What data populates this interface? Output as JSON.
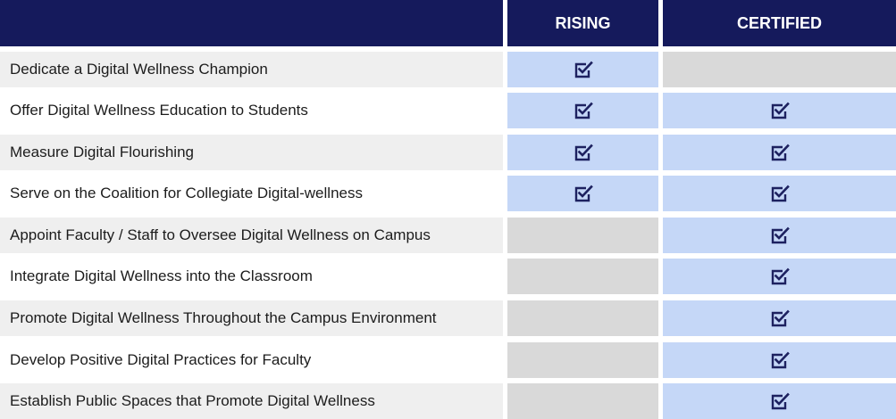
{
  "header": {
    "rising": "RISING",
    "certified": "CERTIFIED"
  },
  "colors": {
    "header": "#151a5c",
    "checked": "#c5d7f7",
    "unchecked": "#d9d9d9",
    "check_icon": "#1d2160"
  },
  "icons": {
    "check": "checkbox-checked-icon"
  },
  "rows": [
    {
      "label": "Dedicate a Digital Wellness Champion",
      "rising": true,
      "certified": false
    },
    {
      "label": "Offer Digital Wellness Education to Students",
      "rising": true,
      "certified": true
    },
    {
      "label": "Measure Digital Flourishing",
      "rising": true,
      "certified": true
    },
    {
      "label": "Serve on the Coalition for Collegiate Digital-wellness",
      "rising": true,
      "certified": true
    },
    {
      "label": "Appoint Faculty / Staff to Oversee Digital Wellness on Campus",
      "rising": false,
      "certified": true
    },
    {
      "label": "Integrate Digital Wellness into the Classroom",
      "rising": false,
      "certified": true
    },
    {
      "label": "Promote Digital Wellness Throughout the Campus Environment",
      "rising": false,
      "certified": true
    },
    {
      "label": "Develop Positive Digital Practices for Faculty",
      "rising": false,
      "certified": true
    },
    {
      "label": "Establish Public Spaces that Promote Digital Wellness",
      "rising": false,
      "certified": true
    }
  ]
}
